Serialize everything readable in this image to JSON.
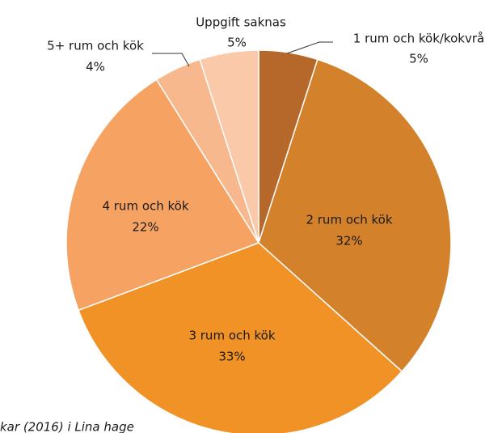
{
  "chart_data": {
    "type": "pie",
    "categories": [
      "1 rum och kök/kokvrå",
      "2 rum och kök",
      "3 rum och kök",
      "4 rum och kök",
      "5+ rum och kök",
      "Uppgift saknas"
    ],
    "values": [
      5,
      32,
      33,
      22,
      4,
      5
    ],
    "value_labels": [
      "5%",
      "32%",
      "33%",
      "22%",
      "4%",
      "5%"
    ],
    "colors": [
      "#b5682a",
      "#d4812b",
      "#f09226",
      "#f5a263",
      "#f7b88d",
      "#fac9aa"
    ],
    "note": "kar (2016) i Lina hage"
  }
}
